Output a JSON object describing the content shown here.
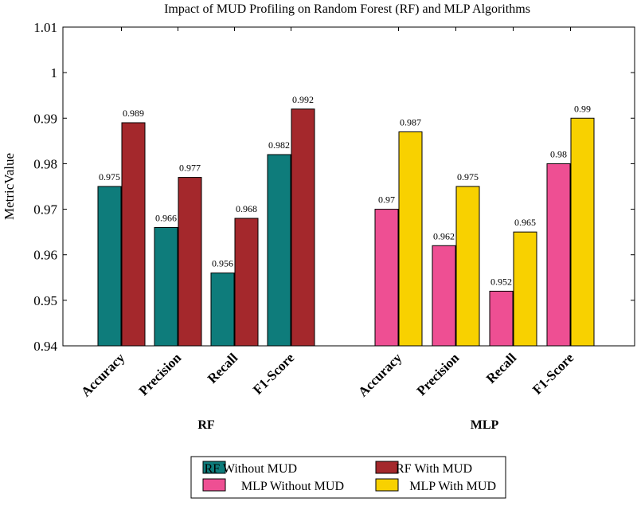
{
  "chart_data": {
    "type": "bar",
    "title": "Impact of MUD Profiling on Random Forest (RF) and MLP Algorithms",
    "ylabel": "MetricValue",
    "xlabel": "",
    "ylim": [
      0.94,
      1.01
    ],
    "yticks": [
      0.94,
      0.95,
      0.96,
      0.97,
      0.98,
      0.99,
      1,
      1.01
    ],
    "ytick_labels": [
      "0.94",
      "0.95",
      "0.96",
      "0.97",
      "0.98",
      "0.99",
      "1",
      "1.01"
    ],
    "grid": false,
    "legend_position": "bottom",
    "groups": [
      {
        "name": "RF",
        "categories": [
          "Accuracy",
          "Precision",
          "Recall",
          "F1-Score"
        ],
        "series": [
          {
            "name": "RF Without MUD",
            "color": "#0e7c7b",
            "values": [
              0.975,
              0.966,
              0.956,
              0.982
            ],
            "labels": [
              "0.975",
              "0.966",
              "0.956",
              "0.982"
            ]
          },
          {
            "name": "RF With MUD",
            "color": "#a4282c",
            "values": [
              0.989,
              0.977,
              0.968,
              0.992
            ],
            "labels": [
              "0.989",
              "0.977",
              "0.968",
              "0.992"
            ]
          }
        ]
      },
      {
        "name": "MLP",
        "categories": [
          "Accuracy",
          "Precision",
          "Recall",
          "F1-Score"
        ],
        "series": [
          {
            "name": "MLP Without MUD",
            "color": "#ee4f93",
            "values": [
              0.97,
              0.962,
              0.952,
              0.98
            ],
            "labels": [
              "0.97",
              "0.962",
              "0.952",
              "0.98"
            ]
          },
          {
            "name": "MLP With MUD",
            "color": "#f8d100",
            "values": [
              0.987,
              0.975,
              0.965,
              0.99
            ],
            "labels": [
              "0.987",
              "0.975",
              "0.965",
              "0.99"
            ]
          }
        ]
      }
    ],
    "legend": [
      {
        "name": "RF Without MUD",
        "color": "#0e7c7b"
      },
      {
        "name": "RF With MUD",
        "color": "#a4282c"
      },
      {
        "name": "MLP Without MUD",
        "color": "#ee4f93"
      },
      {
        "name": "MLP With MUD",
        "color": "#f8d100"
      }
    ]
  }
}
